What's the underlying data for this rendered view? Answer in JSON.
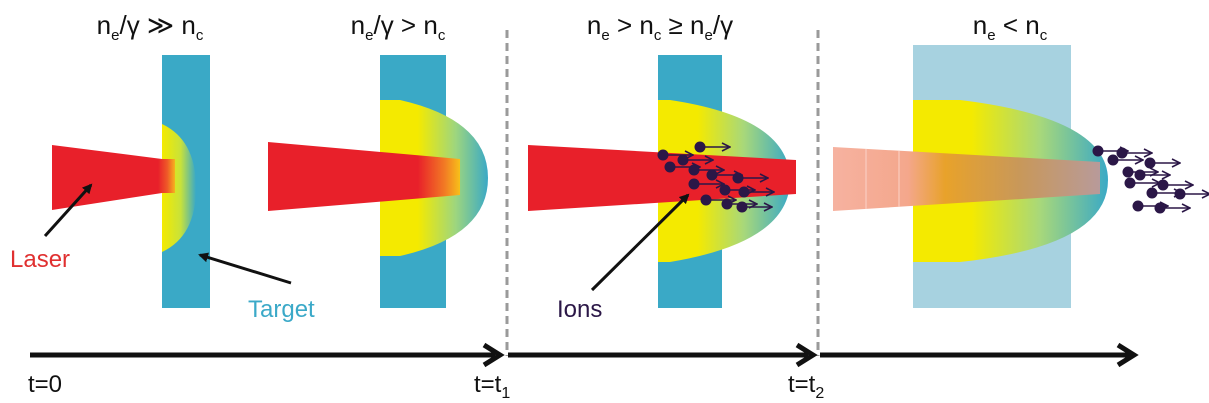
{
  "panels": [
    {
      "condition": "n_e/γ ≫ n_c",
      "parts": [
        "n",
        "e",
        "/γ ≫ n",
        "c"
      ]
    },
    {
      "condition": "n_e/γ > n_c",
      "parts": [
        "n",
        "e",
        "/γ > n",
        "c"
      ]
    },
    {
      "condition": "n_e > n_c ≥ n_e/γ",
      "parts": [
        "n",
        "e",
        " > n",
        "c",
        " ≥ n",
        "e",
        "/γ"
      ]
    },
    {
      "condition": "n_e < n_c",
      "parts": [
        "n",
        "e",
        " < n",
        "c"
      ]
    }
  ],
  "labels": {
    "laser": "Laser",
    "target": "Target",
    "ions": "Ions"
  },
  "timeline": {
    "t0": "t=0",
    "t1_prefix": "t=t",
    "t1_sub": "1",
    "t2_prefix": "t=t",
    "t2_sub": "2"
  },
  "colors": {
    "laser": "#e8202a",
    "target": "#3aa9c6",
    "target_light": "#a7d2e0",
    "yellow": "#f4ea00",
    "ion": "#2b1747",
    "laser_faded": "#f6b2a0",
    "label_laser": "#e03030",
    "label_target": "#3ba9c8",
    "label_ions": "#2b1747"
  }
}
